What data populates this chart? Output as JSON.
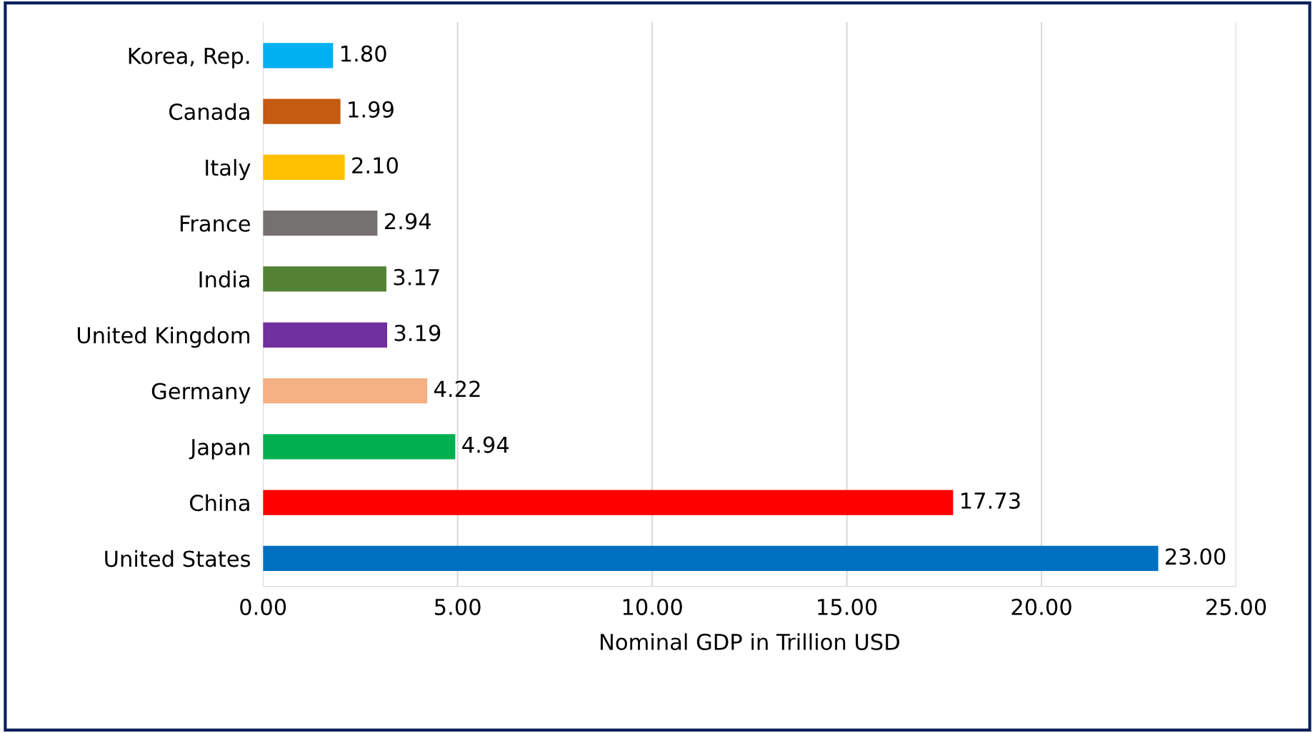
{
  "chart_data": {
    "type": "bar",
    "orientation": "horizontal",
    "xlabel": "Nominal GDP in Trillion USD",
    "categories": [
      "Korea, Rep.",
      "Canada",
      "Italy",
      "France",
      "India",
      "United Kingdom",
      "Germany",
      "Japan",
      "China",
      "United States"
    ],
    "values": [
      1.8,
      1.99,
      2.1,
      2.94,
      3.17,
      3.19,
      4.22,
      4.94,
      17.73,
      23.0
    ],
    "value_labels": [
      "1.80",
      "1.99",
      "2.10",
      "2.94",
      "3.17",
      "3.19",
      "4.22",
      "4.94",
      "17.73",
      "23.00"
    ],
    "colors": [
      "#00b0f0",
      "#c55a11",
      "#ffc000",
      "#767171",
      "#548235",
      "#7030a0",
      "#f4b183",
      "#00b050",
      "#ff0000",
      "#0070c0"
    ],
    "xlim": [
      0,
      25
    ],
    "xticks": [
      {
        "value": 0,
        "label": "0.00"
      },
      {
        "value": 5,
        "label": "5.00"
      },
      {
        "value": 10,
        "label": "10.00"
      },
      {
        "value": 15,
        "label": "15.00"
      },
      {
        "value": 20,
        "label": "20.00"
      },
      {
        "value": 25,
        "label": "25.00"
      }
    ],
    "grid": "x"
  }
}
